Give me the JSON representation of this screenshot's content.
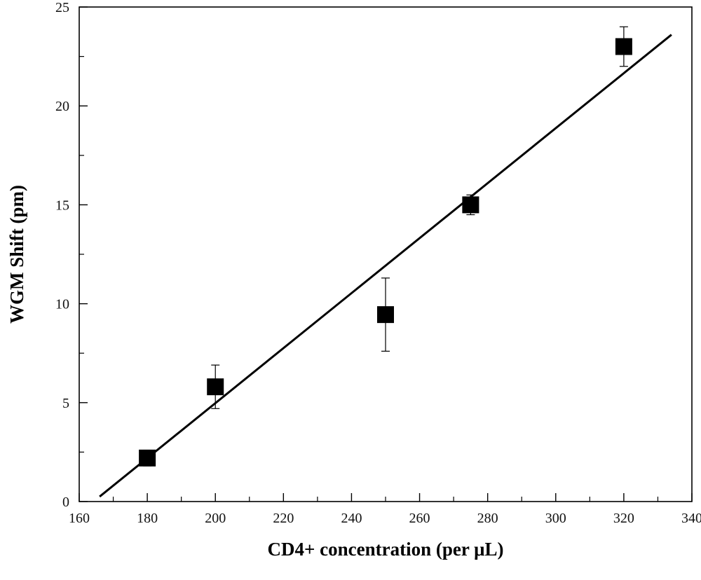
{
  "chart_data": {
    "type": "scatter",
    "title": "",
    "xlabel": "CD4+ concentration (per μL)",
    "ylabel": "WGM Shift (pm)",
    "xlim": [
      160,
      340
    ],
    "ylim": [
      0,
      25
    ],
    "x_ticks": [
      160,
      180,
      200,
      220,
      240,
      260,
      280,
      300,
      320,
      340
    ],
    "y_ticks": [
      0,
      5,
      10,
      15,
      20,
      25
    ],
    "grid": false,
    "legend": "none",
    "colors": {
      "marker": "#000000",
      "line": "#000000",
      "axis": "#000000"
    },
    "series": [
      {
        "marker": "square",
        "x": [
          180,
          200,
          250,
          275,
          320
        ],
        "y": [
          2.2,
          5.8,
          9.45,
          15.0,
          23.0
        ],
        "error": [
          [
            0.4,
            0.4
          ],
          [
            1.1,
            1.1
          ],
          [
            1.85,
            1.85
          ],
          [
            0.5,
            0.5
          ],
          [
            1.0,
            1.0
          ]
        ]
      }
    ],
    "fit_line": {
      "type": "linear",
      "x": [
        166,
        334
      ],
      "y": [
        0.25,
        23.6
      ]
    }
  }
}
